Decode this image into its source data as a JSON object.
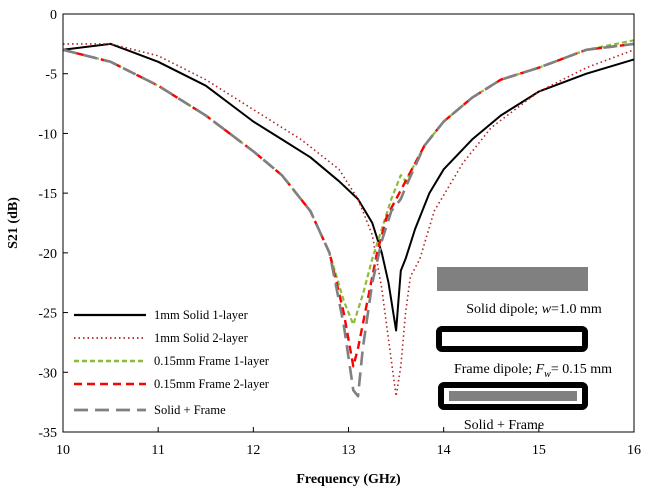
{
  "chart_data": {
    "type": "line",
    "title": "",
    "xlabel": "Frequency (GHz)",
    "ylabel": "S21 (dB)",
    "xlim": [
      10,
      16
    ],
    "ylim": [
      -35,
      0
    ],
    "xticks": [
      10,
      11,
      12,
      13,
      14,
      15,
      16
    ],
    "yticks": [
      0,
      -5,
      -10,
      -15,
      -20,
      -25,
      -30,
      -35
    ],
    "grid": false,
    "legend_position": "bottom-left",
    "series": [
      {
        "name": "1mm Solid 1-layer",
        "color": "#000000",
        "dash": "solid",
        "x": [
          10.0,
          10.5,
          11.0,
          11.5,
          12.0,
          12.3,
          12.6,
          12.9,
          13.1,
          13.25,
          13.35,
          13.42,
          13.5,
          13.55,
          13.6,
          13.7,
          13.85,
          14.0,
          14.3,
          14.6,
          15.0,
          15.5,
          16.0
        ],
        "y": [
          -3.0,
          -2.5,
          -4.0,
          -6.0,
          -9.0,
          -10.5,
          -12.0,
          -14.0,
          -15.5,
          -17.5,
          -20.0,
          -22.5,
          -26.5,
          -21.5,
          -20.5,
          -18.0,
          -15.0,
          -13.0,
          -10.5,
          -8.5,
          -6.5,
          -5.0,
          -3.8
        ]
      },
      {
        "name": "1mm Solid 2-layer",
        "color": "#b22222",
        "dash": "dot",
        "x": [
          10.0,
          10.5,
          11.0,
          11.5,
          12.0,
          12.5,
          12.9,
          13.1,
          13.25,
          13.35,
          13.45,
          13.5,
          13.55,
          13.6,
          13.65,
          13.75,
          13.9,
          14.2,
          14.5,
          15.0,
          15.5,
          16.0
        ],
        "y": [
          -2.5,
          -2.5,
          -3.5,
          -5.5,
          -8.0,
          -10.5,
          -13.0,
          -15.5,
          -18.5,
          -23.0,
          -29.0,
          -32.0,
          -29.5,
          -25.0,
          -22.0,
          -20.5,
          -16.5,
          -12.5,
          -9.5,
          -6.5,
          -4.5,
          -3.0
        ]
      },
      {
        "name": "0.15mm Frame 1-layer",
        "color": "#8dbb3c",
        "dash": "dash-short",
        "x": [
          10.0,
          10.5,
          11.0,
          11.5,
          12.0,
          12.3,
          12.6,
          12.8,
          12.95,
          13.05,
          13.15,
          13.25,
          13.35,
          13.45,
          13.55,
          13.6,
          13.8,
          14.0,
          14.3,
          14.6,
          15.0,
          15.5,
          16.0
        ],
        "y": [
          -3.0,
          -4.0,
          -6.0,
          -8.5,
          -11.5,
          -13.5,
          -16.5,
          -20.0,
          -24.0,
          -26.0,
          -23.5,
          -20.5,
          -18.0,
          -15.5,
          -13.5,
          -14.0,
          -11.0,
          -9.0,
          -7.0,
          -5.5,
          -4.5,
          -3.0,
          -2.2
        ]
      },
      {
        "name": "0.15mm Frame 2-layer",
        "color": "#ff0000",
        "dash": "dash",
        "x": [
          10.0,
          10.5,
          11.0,
          11.5,
          12.0,
          12.3,
          12.6,
          12.8,
          12.95,
          13.05,
          13.1,
          13.2,
          13.3,
          13.4,
          13.5,
          13.6,
          13.8,
          14.0,
          14.3,
          14.6,
          15.0,
          15.5,
          16.0
        ],
        "y": [
          -3.0,
          -4.0,
          -6.0,
          -8.5,
          -11.5,
          -13.5,
          -16.5,
          -20.0,
          -25.0,
          -29.5,
          -28.0,
          -24.0,
          -20.0,
          -17.0,
          -15.5,
          -14.0,
          -11.0,
          -9.0,
          -7.0,
          -5.5,
          -4.5,
          -3.0,
          -2.5
        ]
      },
      {
        "name": "Solid + Frame",
        "color": "#808080",
        "dash": "long-dash",
        "x": [
          10.0,
          10.5,
          11.0,
          11.5,
          12.0,
          12.3,
          12.6,
          12.8,
          12.95,
          13.05,
          13.1,
          13.15,
          13.25,
          13.35,
          13.45,
          13.55,
          13.6,
          13.8,
          14.0,
          14.3,
          14.6,
          15.0,
          15.5,
          16.0
        ],
        "y": [
          -3.0,
          -4.0,
          -6.0,
          -8.5,
          -11.5,
          -13.5,
          -16.5,
          -20.0,
          -26.0,
          -31.5,
          -32.0,
          -28.0,
          -22.5,
          -19.0,
          -16.5,
          -15.5,
          -14.5,
          -11.0,
          -9.0,
          -7.0,
          -5.5,
          -4.5,
          -3.0,
          -2.5
        ]
      }
    ],
    "annotations": {
      "solid_label_prefix": "Solid dipole; ",
      "solid_label_var": "w",
      "solid_label_suffix": "=1.0 mm",
      "frame_label_prefix": "Frame dipole; ",
      "frame_label_var": "F",
      "frame_label_sub": "w",
      "frame_label_suffix": "= 0.15 mm",
      "combo_label": "Solid + Frame"
    },
    "inset_colors": {
      "solid_fill": "#808080",
      "frame_stroke": "#000000",
      "combo_inner": "#808080"
    }
  }
}
